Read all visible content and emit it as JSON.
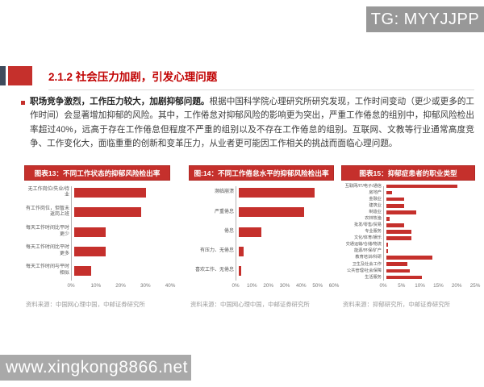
{
  "watermarks": {
    "telegram": "TG: MYYJJPP",
    "site": "www.xingkong8866.net"
  },
  "header": {
    "section_title": "2.1.2 社会压力加剧，引发心理问题"
  },
  "body": {
    "bullet_lead": "职场竞争激烈，工作压力较大，加剧抑郁问题。",
    "bullet_text": "根据中国科学院心理研究所研究发现，工作时间变动（更少或更多的工作时间）会显著增加抑郁的风险。其中，工作倦怠对抑郁风险的影响更为突出，严重工作倦怠的组别中，抑郁风险检出率超过40%，远高于存在工作倦怠但程度不严重的组别以及不存在工作倦怠的组别。互联网、文教等行业通常高度竞争、工作变化大，面临重重的创新和变革压力，从业者更可能因工作相关的挑战而面临心理问题。"
  },
  "colors": {
    "accent_red": "#c5302c",
    "title_red": "#c00000",
    "watermark_gray": "#a9a9a9"
  },
  "chart_data": [
    {
      "type": "bar",
      "orientation": "horizontal",
      "title": "图表13：不同工作状态的抑郁风险检出率",
      "categories": [
        "无工作岗位/失业/待业",
        "有工作岗位，但暂未返岗上班",
        "每天工作时间比平时更少",
        "每天工作时间比平时更多",
        "每天工作时间与平时相似"
      ],
      "values": [
        30,
        28,
        13,
        13,
        7
      ],
      "xlim": [
        0,
        40
      ],
      "ticks": [
        "0%",
        "10%",
        "20%",
        "30%",
        "40%"
      ],
      "grid": false,
      "source": "资料来源：中国网心理中国，中邮证券研究所"
    },
    {
      "type": "bar",
      "orientation": "horizontal",
      "title": "图:14：不同工作倦怠水平的抑郁风险检出率",
      "categories": [
        "濒临崩溃",
        "严重倦怠",
        "倦怠",
        "有压力、无倦怠",
        "喜欢工作、无倦怠"
      ],
      "values": [
        48,
        41,
        14,
        3,
        1.5
      ],
      "xlim": [
        0,
        60
      ],
      "ticks": [
        "0%",
        "10%",
        "20%",
        "30%",
        "40%",
        "50%",
        "60%"
      ],
      "grid": false,
      "source": "资料来源：中国网心理中国，中邮证券研究所"
    },
    {
      "type": "bar",
      "orientation": "horizontal",
      "title": "图表15：抑郁症患者的职业类型",
      "categories": [
        "互联网/IT/电子/通信",
        "房地产",
        "金融业",
        "建筑业",
        "制造业",
        "农林牧渔",
        "批发/零售/贸易",
        "专业服务",
        "文化/体育/娱乐",
        "交通运输/仓储/物流",
        "能源/环保/矿产",
        "教育培训/科研",
        "卫生及社会工作",
        "公共管理/社会保障",
        "生活服务"
      ],
      "values": [
        20,
        1.5,
        5,
        5,
        8.5,
        1,
        5,
        7,
        7,
        0.5,
        0.5,
        13,
        6,
        6.5,
        10
      ],
      "xlim": [
        0,
        25
      ],
      "ticks": [
        "0%",
        "5%",
        "10%",
        "15%",
        "20%",
        "25%"
      ],
      "grid": false,
      "source": "资料来源：抑郁研究所，中邮证券研究所"
    }
  ]
}
